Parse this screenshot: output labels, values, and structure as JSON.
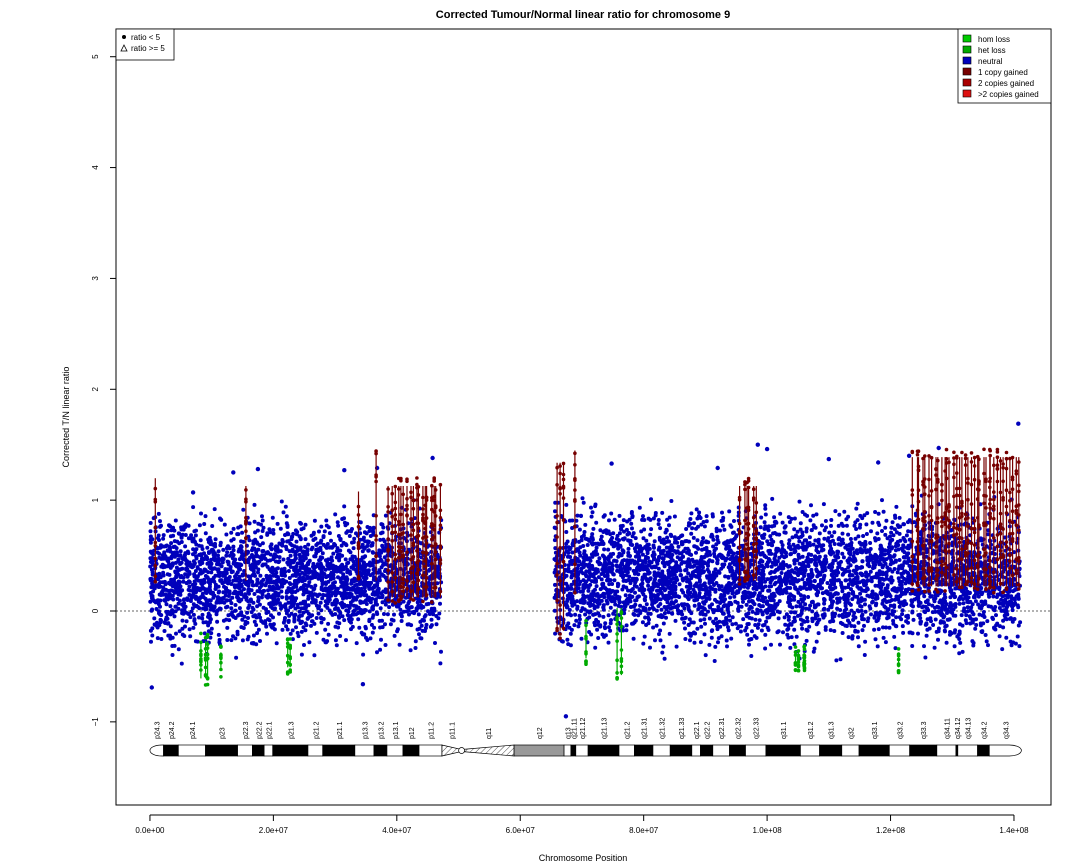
{
  "chart_data": {
    "type": "scatter",
    "title": "Corrected Tumour/Normal linear ratio for chromosome  9",
    "xlabel": "Chromosome Position",
    "ylabel": "Corrected T/N linear ratio",
    "xlim": [
      -5500000,
      146000000
    ],
    "ylim": [
      -1.75,
      5.25
    ],
    "x_ticks": [
      0,
      20000000,
      40000000,
      60000000,
      80000000,
      100000000,
      120000000,
      140000000
    ],
    "x_tick_labels": [
      "0.0e+00",
      "2.0e+07",
      "4.0e+07",
      "6.0e+07",
      "8.0e+07",
      "1.0e+08",
      "1.2e+08",
      "1.4e+08"
    ],
    "y_ticks": [
      -1,
      0,
      1,
      2,
      3,
      4,
      5
    ],
    "y_tick_labels": [
      "−1",
      "0",
      "1",
      "2",
      "3",
      "4",
      "5"
    ],
    "reference_line_y": 0,
    "shape_legend": {
      "position": "top-left",
      "entries": [
        {
          "symbol": "dot",
          "label": "ratio < 5"
        },
        {
          "symbol": "triangle",
          "label": "ratio >= 5"
        }
      ]
    },
    "legend": {
      "position": "top-right",
      "entries": [
        {
          "label": "hom loss",
          "color": "#00cc00"
        },
        {
          "label": "het loss",
          "color": "#00aa00"
        },
        {
          "label": "neutral",
          "color": "#0000bb"
        },
        {
          "label": "1 copy gained",
          "color": "#770000"
        },
        {
          "label": "2 copies gained",
          "color": "#aa0000"
        },
        {
          "label": ">2 copies gained",
          "color": "#dd1111"
        }
      ]
    },
    "series": [
      {
        "name": "neutral",
        "color": "#0000bb",
        "segments": [
          {
            "x_start": 0,
            "x_end": 47200000,
            "y_min": -0.5,
            "y_max": 1.05
          },
          {
            "x_start": 65500000,
            "x_end": 141000000,
            "y_min": -0.5,
            "y_max": 1.1
          }
        ],
        "outliers": [
          {
            "x": 300000,
            "y": -0.69
          },
          {
            "x": 7000000,
            "y": 1.07
          },
          {
            "x": 13500000,
            "y": 1.25
          },
          {
            "x": 17500000,
            "y": 1.28
          },
          {
            "x": 31500000,
            "y": 1.27
          },
          {
            "x": 36800000,
            "y": 1.29
          },
          {
            "x": 45800000,
            "y": 1.38
          },
          {
            "x": 34500000,
            "y": -0.66
          },
          {
            "x": 67400000,
            "y": -0.95
          },
          {
            "x": 74800000,
            "y": 1.33
          },
          {
            "x": 92000000,
            "y": 1.29
          },
          {
            "x": 98500000,
            "y": 1.5
          },
          {
            "x": 100000000,
            "y": 1.46
          },
          {
            "x": 110000000,
            "y": 1.37
          },
          {
            "x": 118000000,
            "y": 1.34
          },
          {
            "x": 123000000,
            "y": 1.4
          },
          {
            "x": 127800000,
            "y": 1.47
          },
          {
            "x": 140700000,
            "y": 1.69
          }
        ]
      },
      {
        "name": "1 copy gained",
        "color": "#770000",
        "segments": [
          {
            "x_start": 700000,
            "x_end": 1000000,
            "y_min": 0.2,
            "y_max": 1.27
          },
          {
            "x_start": 15300000,
            "x_end": 15800000,
            "y_min": 0.2,
            "y_max": 1.2
          },
          {
            "x_start": 33500000,
            "x_end": 34100000,
            "y_min": 0.25,
            "y_max": 1.15
          },
          {
            "x_start": 36300000,
            "x_end": 37000000,
            "y_min": 0.2,
            "y_max": 1.48
          },
          {
            "x_start": 38500000,
            "x_end": 47200000,
            "y_min": 0.05,
            "y_max": 1.2
          },
          {
            "x_start": 65700000,
            "x_end": 67300000,
            "y_min": -0.25,
            "y_max": 1.41
          },
          {
            "x_start": 68500000,
            "x_end": 69200000,
            "y_min": 0.1,
            "y_max": 1.52
          },
          {
            "x_start": 95500000,
            "x_end": 98500000,
            "y_min": 0.2,
            "y_max": 1.2
          },
          {
            "x_start": 123500000,
            "x_end": 141000000,
            "y_min": 0.15,
            "y_max": 1.46
          }
        ]
      },
      {
        "name": "het loss",
        "color": "#00aa00",
        "segments": [
          {
            "x_start": 8000000,
            "x_end": 9600000,
            "y_min": -0.68,
            "y_max": -0.2
          },
          {
            "x_start": 11200000,
            "x_end": 11800000,
            "y_min": -0.6,
            "y_max": -0.3
          },
          {
            "x_start": 22000000,
            "x_end": 23200000,
            "y_min": -0.58,
            "y_max": -0.25
          },
          {
            "x_start": 70300000,
            "x_end": 71000000,
            "y_min": -0.5,
            "y_max": -0.05
          },
          {
            "x_start": 75600000,
            "x_end": 76700000,
            "y_min": -0.65,
            "y_max": 0.1
          },
          {
            "x_start": 104500000,
            "x_end": 106500000,
            "y_min": -0.55,
            "y_max": -0.3
          },
          {
            "x_start": 121000000,
            "x_end": 121600000,
            "y_min": -0.58,
            "y_max": -0.3
          }
        ]
      }
    ],
    "ideogram": {
      "centromere_x": 50500000,
      "bands": [
        {
          "name": "p24.3",
          "start": 0,
          "end": 2200000,
          "stain": "gneg"
        },
        {
          "name": "p24.2",
          "start": 2200000,
          "end": 4600000,
          "stain": "gpos"
        },
        {
          "name": "p24.1",
          "start": 4600000,
          "end": 9000000,
          "stain": "gneg"
        },
        {
          "name": "p23",
          "start": 9000000,
          "end": 14200000,
          "stain": "gpos"
        },
        {
          "name": "p22.3",
          "start": 14200000,
          "end": 16600000,
          "stain": "gneg"
        },
        {
          "name": "p22.2",
          "start": 16600000,
          "end": 18500000,
          "stain": "gpos"
        },
        {
          "name": "p22.1",
          "start": 18500000,
          "end": 19900000,
          "stain": "gneg"
        },
        {
          "name": "p21.3",
          "start": 19900000,
          "end": 25600000,
          "stain": "gpos"
        },
        {
          "name": "p21.2",
          "start": 25600000,
          "end": 28000000,
          "stain": "gneg"
        },
        {
          "name": "p21.1",
          "start": 28000000,
          "end": 33200000,
          "stain": "gpos"
        },
        {
          "name": "p13.3",
          "start": 33200000,
          "end": 36300000,
          "stain": "gneg"
        },
        {
          "name": "p13.2",
          "start": 36300000,
          "end": 38400000,
          "stain": "gpos"
        },
        {
          "name": "p13.1",
          "start": 38400000,
          "end": 41000000,
          "stain": "gneg"
        },
        {
          "name": "p12",
          "start": 41000000,
          "end": 43600000,
          "stain": "gpos"
        },
        {
          "name": "p11.2",
          "start": 43600000,
          "end": 47300000,
          "stain": "gneg"
        },
        {
          "name": "p11.1",
          "start": 47300000,
          "end": 50500000,
          "stain": "acen"
        },
        {
          "name": "q11",
          "start": 50500000,
          "end": 59000000,
          "stain": "gvar"
        },
        {
          "name": "q12",
          "start": 59000000,
          "end": 67100000,
          "stain": "stalk"
        },
        {
          "name": "q13",
          "start": 67100000,
          "end": 68200000,
          "stain": "gneg"
        },
        {
          "name": "q21.11",
          "start": 68200000,
          "end": 69000000,
          "stain": "gpos"
        },
        {
          "name": "q21.12",
          "start": 69000000,
          "end": 71000000,
          "stain": "gneg"
        },
        {
          "name": "q21.13",
          "start": 71000000,
          "end": 76000000,
          "stain": "gpos"
        },
        {
          "name": "q21.2",
          "start": 76000000,
          "end": 78500000,
          "stain": "gneg"
        },
        {
          "name": "q21.31",
          "start": 78500000,
          "end": 81500000,
          "stain": "gpos"
        },
        {
          "name": "q21.32",
          "start": 81500000,
          "end": 84300000,
          "stain": "gneg"
        },
        {
          "name": "q21.33",
          "start": 84300000,
          "end": 87800000,
          "stain": "gpos"
        },
        {
          "name": "q22.1",
          "start": 87800000,
          "end": 89200000,
          "stain": "gneg"
        },
        {
          "name": "q22.2",
          "start": 89200000,
          "end": 91200000,
          "stain": "gpos"
        },
        {
          "name": "q22.31",
          "start": 91200000,
          "end": 93900000,
          "stain": "gneg"
        },
        {
          "name": "q22.32",
          "start": 93900000,
          "end": 96500000,
          "stain": "gpos"
        },
        {
          "name": "q22.33",
          "start": 96500000,
          "end": 99800000,
          "stain": "gneg"
        },
        {
          "name": "q31.1",
          "start": 99800000,
          "end": 105400000,
          "stain": "gpos"
        },
        {
          "name": "q31.2",
          "start": 105400000,
          "end": 108500000,
          "stain": "gneg"
        },
        {
          "name": "q31.3",
          "start": 108500000,
          "end": 112100000,
          "stain": "gpos"
        },
        {
          "name": "q32",
          "start": 112100000,
          "end": 114900000,
          "stain": "gneg"
        },
        {
          "name": "q33.1",
          "start": 114900000,
          "end": 119800000,
          "stain": "gpos"
        },
        {
          "name": "q33.2",
          "start": 119800000,
          "end": 123100000,
          "stain": "gneg"
        },
        {
          "name": "q33.3",
          "start": 123100000,
          "end": 127500000,
          "stain": "gpos"
        },
        {
          "name": "q34.11",
          "start": 127500000,
          "end": 130600000,
          "stain": "gneg"
        },
        {
          "name": "q34.12",
          "start": 130600000,
          "end": 130900000,
          "stain": "gpos"
        },
        {
          "name": "q34.13",
          "start": 130900000,
          "end": 134100000,
          "stain": "gneg"
        },
        {
          "name": "q34.2",
          "start": 134100000,
          "end": 136000000,
          "stain": "gpos"
        },
        {
          "name": "q34.3",
          "start": 136000000,
          "end": 141200000,
          "stain": "gneg"
        }
      ]
    }
  }
}
